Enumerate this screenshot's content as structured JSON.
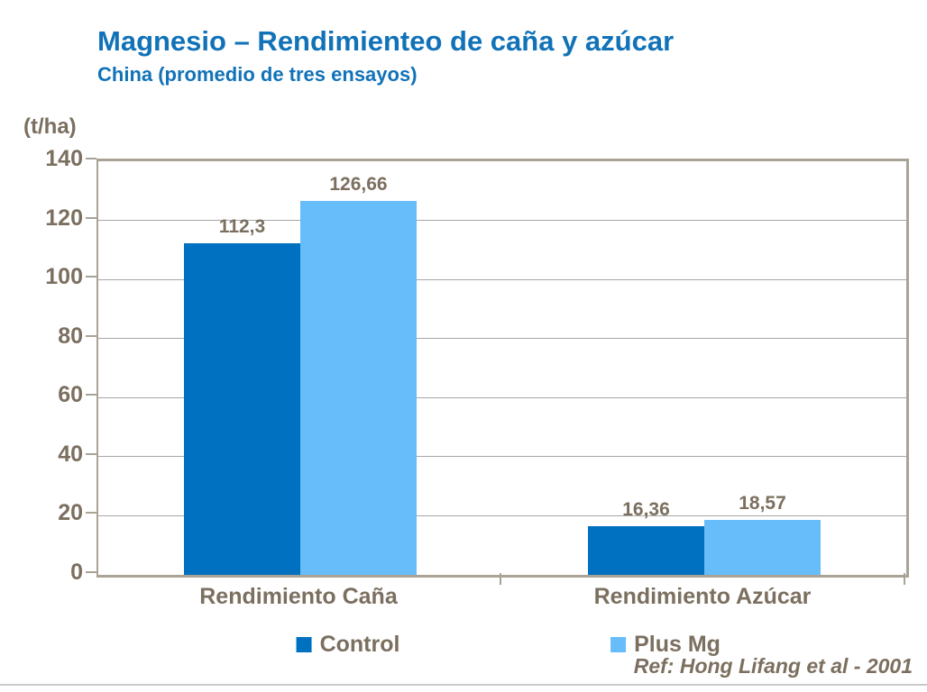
{
  "header": {
    "title": "Magnesio – Rendimienteo de caña y azúcar",
    "subtitle": "China (promedio de tres ensayos)"
  },
  "footer": {
    "reference": "Ref: Hong Lifang et al - 2001"
  },
  "chart_data": {
    "type": "bar",
    "title": "Magnesio – Rendimienteo de caña y azúcar",
    "subtitle": "China (promedio de tres ensayos)",
    "unit_label": "(t/ha)",
    "ylabel": "(t/ha)",
    "categories": [
      "Rendimiento Caña",
      "Rendimiento Azúcar"
    ],
    "series": [
      {
        "name": "Control",
        "color": "#0070C0",
        "values": [
          112.3,
          16.36
        ],
        "value_labels": [
          "112,3",
          "16,36"
        ]
      },
      {
        "name": "Plus Mg",
        "color": "#67BCFA",
        "values": [
          126.66,
          18.57
        ],
        "value_labels": [
          "126,66",
          "18,57"
        ]
      }
    ],
    "ylim": [
      0,
      140
    ],
    "ytick_interval": 20,
    "yticks": [
      0,
      20,
      40,
      60,
      80,
      100,
      120,
      140
    ],
    "grid": true,
    "legend_position": "bottom"
  },
  "colors": {
    "title_text": "#1172B8",
    "chart_text": "#7B6F5F",
    "axis_frame": "#A9A395",
    "gridline": "#A6A6A6",
    "bottom_rule": "#C9C9C9",
    "background": "#FFFFFF"
  }
}
